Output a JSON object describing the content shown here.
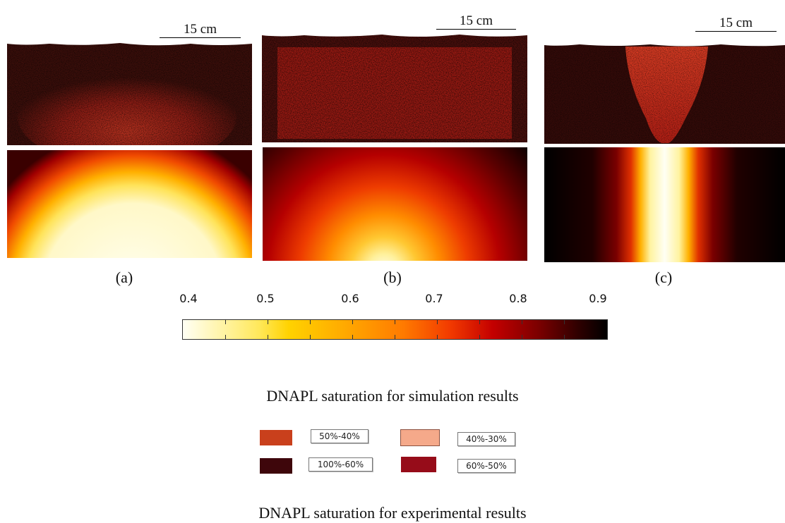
{
  "panels": [
    {
      "scale_label": "15 cm",
      "caption": "(a)"
    },
    {
      "scale_label": "15 cm",
      "caption": "(b)"
    },
    {
      "scale_label": "15 cm",
      "caption": "(c)"
    }
  ],
  "colorbar": {
    "ticks": [
      "0.4",
      "0.5",
      "0.6",
      "0.7",
      "0.8",
      "0.9"
    ],
    "colormap": [
      "#fffff4",
      "#ffd200",
      "#ff7a00",
      "#c40000",
      "#000000"
    ]
  },
  "simulation_title": "DNAPL saturation for simulation results",
  "legend": [
    {
      "label": "50%-40%",
      "color": "#c9401c"
    },
    {
      "label": "40%-30%",
      "color": "#f5a98a"
    },
    {
      "label": "100%-60%",
      "color": "#3e060b"
    },
    {
      "label": "60%-50%",
      "color": "#960c19"
    }
  ],
  "experimental_title": "DNAPL saturation for experimental results"
}
